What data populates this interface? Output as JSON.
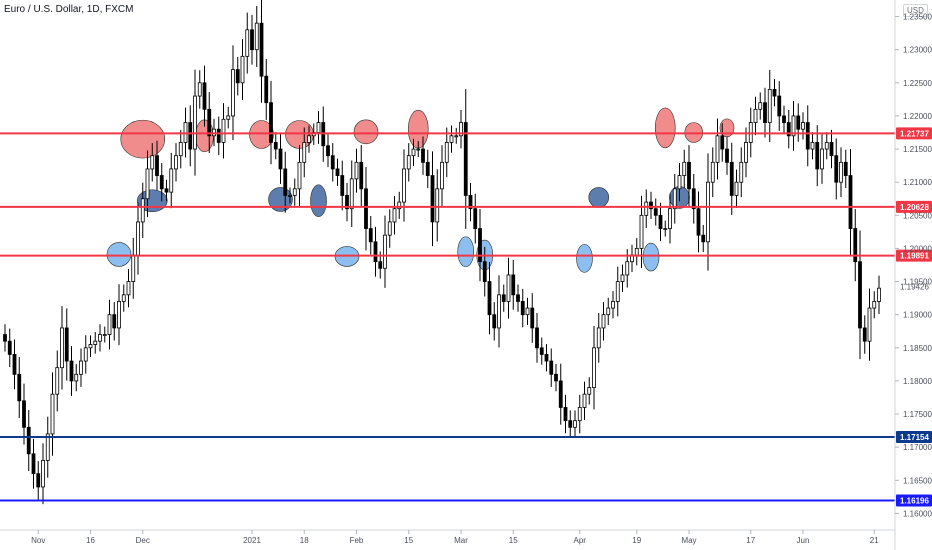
{
  "header": {
    "title": "Euro / U.S. Dollar, 1D, FXCM",
    "currency": "USD"
  },
  "chart_data": {
    "type": "candlestick",
    "title": "Euro / U.S. Dollar, 1D, FXCM",
    "ylim": [
      1.1575,
      1.2375
    ],
    "y_ticks": [
      "1.23500",
      "1.23000",
      "1.22500",
      "1.22000",
      "1.21500",
      "1.21000",
      "1.20500",
      "1.20000",
      "1.19500",
      "1.19000",
      "1.18500",
      "1.18000",
      "1.17500",
      "1.17000",
      "1.16500",
      "1.16000"
    ],
    "x_ticks": [
      {
        "label": "Nov",
        "i": 7
      },
      {
        "label": "16",
        "i": 18
      },
      {
        "label": "Dec",
        "i": 29
      },
      {
        "label": "2021",
        "i": 52
      },
      {
        "label": "18",
        "i": 63
      },
      {
        "label": "Feb",
        "i": 74
      },
      {
        "label": "15",
        "i": 85
      },
      {
        "label": "Mar",
        "i": 96
      },
      {
        "label": "15",
        "i": 107
      },
      {
        "label": "Apr",
        "i": 121
      },
      {
        "label": "19",
        "i": 133
      },
      {
        "label": "May",
        "i": 144
      },
      {
        "label": "17",
        "i": 157
      },
      {
        "label": "Jun",
        "i": 168
      },
      {
        "label": "21",
        "i": 183
      }
    ],
    "levels": [
      {
        "value": 1.21737,
        "label": "1.21737",
        "color": "#f23645"
      },
      {
        "value": 1.20628,
        "label": "1.20628",
        "color": "#f23645"
      },
      {
        "value": 1.19891,
        "label": "1.19891",
        "color": "#f23645"
      },
      {
        "value": 1.17154,
        "label": "1.17154",
        "color": "#0d3a8c"
      },
      {
        "value": 1.16196,
        "label": "1.16196",
        "color": "#1a1aff"
      }
    ],
    "last_price": {
      "value": 1.19426,
      "label": "1.19426"
    },
    "closes": [
      1.186,
      1.184,
      1.181,
      1.177,
      1.173,
      1.169,
      1.166,
      1.164,
      1.168,
      1.172,
      1.178,
      1.182,
      1.188,
      1.183,
      1.18,
      1.181,
      1.183,
      1.185,
      1.1855,
      1.186,
      1.187,
      1.187,
      1.19,
      1.188,
      1.192,
      1.193,
      1.195,
      1.199,
      1.204,
      1.2075,
      1.212,
      1.214,
      1.211,
      1.209,
      1.2085,
      1.212,
      1.214,
      1.216,
      1.219,
      1.215,
      1.223,
      1.225,
      1.221,
      1.217,
      1.218,
      1.216,
      1.2195,
      1.22,
      1.227,
      1.225,
      1.229,
      1.233,
      1.23,
      1.234,
      1.226,
      1.222,
      1.216,
      1.215,
      1.212,
      1.208,
      1.208,
      1.209,
      1.213,
      1.216,
      1.217,
      1.2175,
      1.219,
      1.2155,
      1.214,
      1.212,
      1.211,
      1.208,
      1.206,
      1.2105,
      1.213,
      1.209,
      1.203,
      1.201,
      1.198,
      1.197,
      1.202,
      1.204,
      1.206,
      1.207,
      1.212,
      1.214,
      1.215,
      1.215,
      1.213,
      1.211,
      1.204,
      1.209,
      1.213,
      1.216,
      1.217,
      1.217,
      1.219,
      1.208,
      1.206,
      1.203,
      1.198,
      1.195,
      1.19,
      1.188,
      1.193,
      1.192,
      1.196,
      1.193,
      1.192,
      1.19,
      1.191,
      1.188,
      1.185,
      1.184,
      1.183,
      1.181,
      1.18,
      1.176,
      1.174,
      1.173,
      1.174,
      1.176,
      1.178,
      1.179,
      1.185,
      1.188,
      1.19,
      1.191,
      1.192,
      1.195,
      1.196,
      1.198,
      1.199,
      1.2,
      1.205,
      1.207,
      1.206,
      1.205,
      1.203,
      1.203,
      1.206,
      1.209,
      1.211,
      1.213,
      1.209,
      1.206,
      1.202,
      1.201,
      1.21,
      1.213,
      1.217,
      1.215,
      1.213,
      1.208,
      1.21,
      1.213,
      1.216,
      1.219,
      1.221,
      1.222,
      1.219,
      1.224,
      1.223,
      1.22,
      1.219,
      1.217,
      1.22,
      1.218,
      1.219,
      1.215,
      1.216,
      1.212,
      1.215,
      1.216,
      1.214,
      1.21,
      1.213,
      1.211,
      1.203,
      1.198,
      1.188,
      1.186,
      1.191,
      1.192,
      1.194
    ]
  },
  "annotations": [
    {
      "i": 29,
      "price": 1.2165,
      "rx": 22,
      "ry": 19,
      "color": "#f08080"
    },
    {
      "i": 42,
      "price": 1.217,
      "rx": 9,
      "ry": 16,
      "color": "#f08080"
    },
    {
      "i": 54,
      "price": 1.2172,
      "rx": 12,
      "ry": 14,
      "color": "#f08080"
    },
    {
      "i": 62,
      "price": 1.2172,
      "rx": 14,
      "ry": 14,
      "color": "#f08080"
    },
    {
      "i": 76,
      "price": 1.2176,
      "rx": 12,
      "ry": 12,
      "color": "#f08080"
    },
    {
      "i": 87,
      "price": 1.218,
      "rx": 10,
      "ry": 19,
      "color": "#f08080"
    },
    {
      "i": 139,
      "price": 1.2182,
      "rx": 10,
      "ry": 20,
      "color": "#f08080"
    },
    {
      "i": 145,
      "price": 1.2175,
      "rx": 9,
      "ry": 10,
      "color": "#f08080"
    },
    {
      "i": 152,
      "price": 1.2182,
      "rx": 7,
      "ry": 9,
      "color": "#f08080"
    },
    {
      "i": 31,
      "price": 1.2072,
      "rx": 15,
      "ry": 11,
      "color": "#4a6fa5"
    },
    {
      "i": 58,
      "price": 1.2074,
      "rx": 12,
      "ry": 12,
      "color": "#4a6fa5"
    },
    {
      "i": 66,
      "price": 1.2072,
      "rx": 8,
      "ry": 16,
      "color": "#4a6fa5"
    },
    {
      "i": 125,
      "price": 1.2077,
      "rx": 10,
      "ry": 10,
      "color": "#4a6fa5"
    },
    {
      "i": 142,
      "price": 1.2077,
      "rx": 10,
      "ry": 11,
      "color": "#4a6fa5"
    },
    {
      "i": 24,
      "price": 1.1991,
      "rx": 12,
      "ry": 12,
      "color": "#7fb8ee"
    },
    {
      "i": 72,
      "price": 1.1988,
      "rx": 12,
      "ry": 10,
      "color": "#7fb8ee"
    },
    {
      "i": 97,
      "price": 1.1995,
      "rx": 8,
      "ry": 15,
      "color": "#7fb8ee"
    },
    {
      "i": 101,
      "price": 1.199,
      "rx": 8,
      "ry": 15,
      "color": "#7fb8ee"
    },
    {
      "i": 122,
      "price": 1.1985,
      "rx": 8,
      "ry": 14,
      "color": "#7fb8ee"
    },
    {
      "i": 136,
      "price": 1.1987,
      "rx": 8,
      "ry": 14,
      "color": "#7fb8ee"
    }
  ]
}
